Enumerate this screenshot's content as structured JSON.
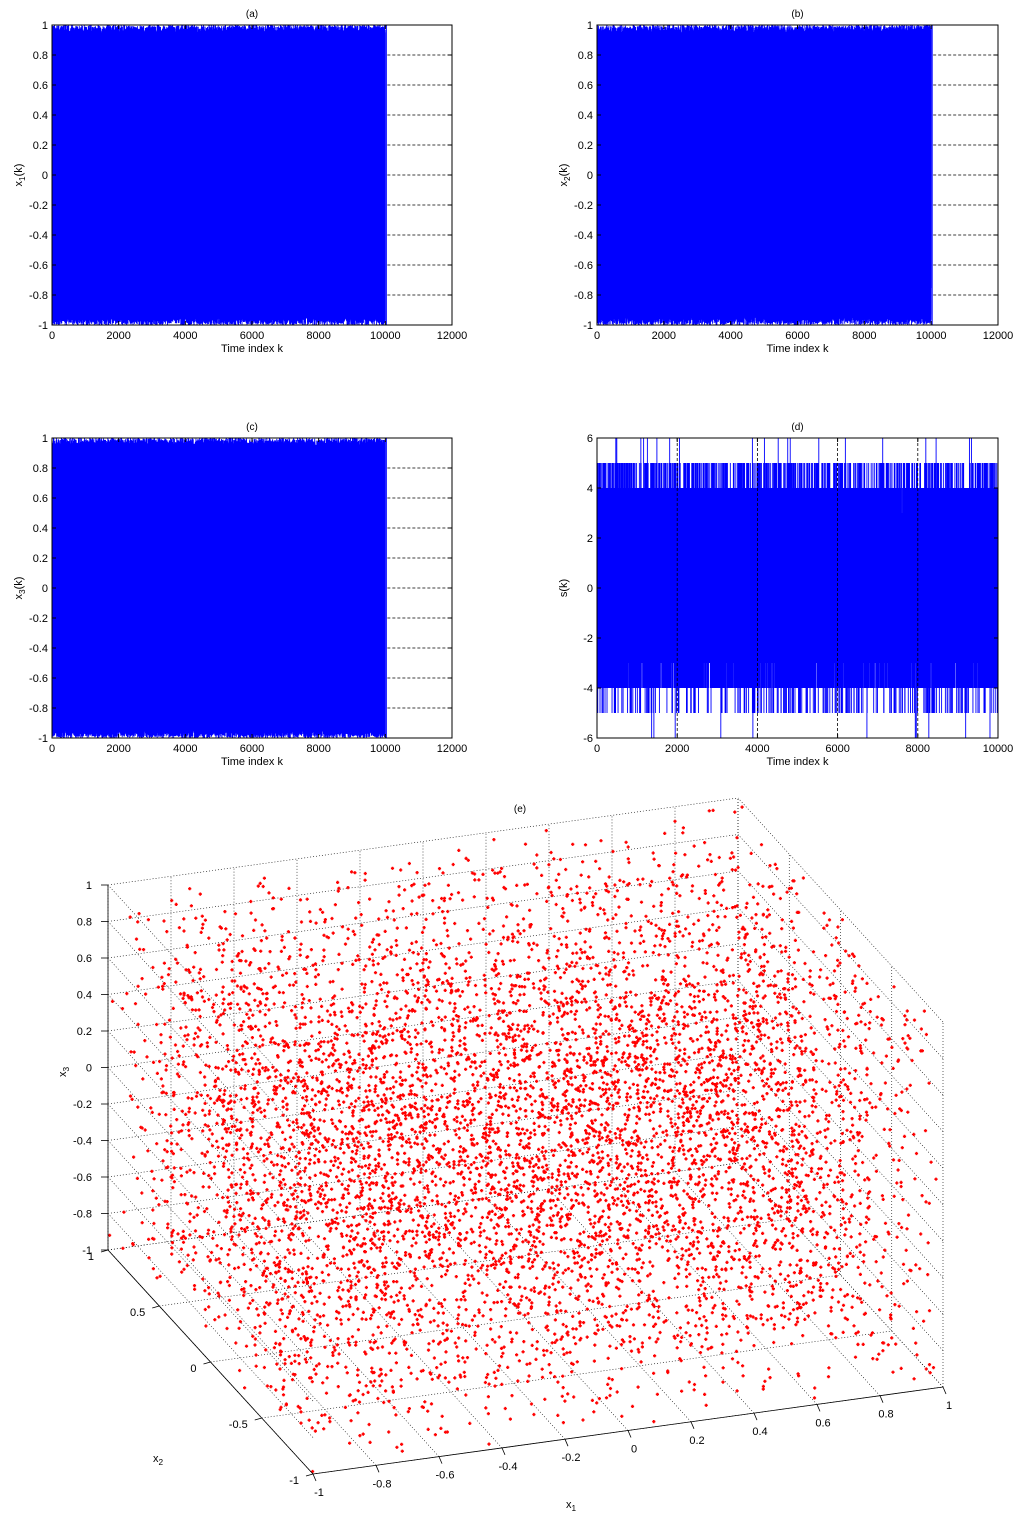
{
  "colors": {
    "signal": "#0000ff",
    "scatter": "#ff0000",
    "axis": "#000000",
    "grid": "#000000"
  },
  "chart_data": [
    {
      "type": "line",
      "title": "(a)",
      "xlabel": "Time index k",
      "ylabel": "x1(k)",
      "ylabel_main": "x",
      "ylabel_sub": "1",
      "ylabel_tail": "(k)",
      "xlim": [
        0,
        12000
      ],
      "ylim": [
        -1,
        1
      ],
      "xticks": [
        0,
        2000,
        4000,
        6000,
        8000,
        10000,
        12000
      ],
      "yticks": [
        -1,
        -0.8,
        -0.6,
        -0.4,
        -0.2,
        0,
        0.2,
        0.4,
        0.6,
        0.8,
        1
      ],
      "xtick_labels": [
        "0",
        "2000",
        "4000",
        "6000",
        "8000",
        "10000",
        "12000"
      ],
      "ytick_labels": [
        "-1",
        "-0.8",
        "-0.6",
        "-0.4",
        "-0.2",
        "0",
        "0.2",
        "0.4",
        "0.6",
        "0.8",
        "1"
      ],
      "grid": "horizontal dashed",
      "series": [
        {
          "n_samples": 10000,
          "x_range": [
            0,
            10000
          ],
          "y_range": [
            -1,
            1
          ],
          "distribution": "chaotic, dense in [-1, 1]"
        }
      ]
    },
    {
      "type": "line",
      "title": "(b)",
      "xlabel": "Time index k",
      "ylabel": "x2(k)",
      "ylabel_main": "x",
      "ylabel_sub": "2",
      "ylabel_tail": "(k)",
      "xlim": [
        0,
        12000
      ],
      "ylim": [
        -1,
        1
      ],
      "xticks": [
        0,
        2000,
        4000,
        6000,
        8000,
        10000,
        12000
      ],
      "yticks": [
        -1,
        -0.8,
        -0.6,
        -0.4,
        -0.2,
        0,
        0.2,
        0.4,
        0.6,
        0.8,
        1
      ],
      "xtick_labels": [
        "0",
        "2000",
        "4000",
        "6000",
        "8000",
        "10000",
        "12000"
      ],
      "ytick_labels": [
        "-1",
        "-0.8",
        "-0.6",
        "-0.4",
        "-0.2",
        "0",
        "0.2",
        "0.4",
        "0.6",
        "0.8",
        "1"
      ],
      "grid": "horizontal dashed",
      "series": [
        {
          "n_samples": 10000,
          "x_range": [
            0,
            10000
          ],
          "y_range": [
            -1,
            1
          ],
          "distribution": "chaotic, dense in [-1, 1]"
        }
      ]
    },
    {
      "type": "line",
      "title": "(c)",
      "xlabel": "Time index k",
      "ylabel": "x3(k)",
      "ylabel_main": "x",
      "ylabel_sub": "3",
      "ylabel_tail": "(k)",
      "xlim": [
        0,
        12000
      ],
      "ylim": [
        -1,
        1
      ],
      "xticks": [
        0,
        2000,
        4000,
        6000,
        8000,
        10000,
        12000
      ],
      "yticks": [
        -1,
        -0.8,
        -0.6,
        -0.4,
        -0.2,
        0,
        0.2,
        0.4,
        0.6,
        0.8,
        1
      ],
      "xtick_labels": [
        "0",
        "2000",
        "4000",
        "6000",
        "8000",
        "10000",
        "12000"
      ],
      "ytick_labels": [
        "-1",
        "-0.8",
        "-0.6",
        "-0.4",
        "-0.2",
        "0",
        "0.2",
        "0.4",
        "0.6",
        "0.8",
        "1"
      ],
      "grid": "horizontal dashed",
      "series": [
        {
          "n_samples": 10000,
          "x_range": [
            0,
            10000
          ],
          "y_range": [
            -1,
            1
          ],
          "distribution": "chaotic, dense in [-1, 1]"
        }
      ]
    },
    {
      "type": "line",
      "title": "(d)",
      "xlabel": "Time index k",
      "ylabel": "s(k)",
      "ylabel_main": "s(k)",
      "ylabel_sub": "",
      "ylabel_tail": "",
      "xlim": [
        0,
        10000
      ],
      "ylim": [
        -6,
        6
      ],
      "xticks": [
        0,
        2000,
        4000,
        6000,
        8000,
        10000
      ],
      "yticks": [
        -6,
        -4,
        -2,
        0,
        2,
        4,
        6
      ],
      "xtick_labels": [
        "0",
        "2000",
        "4000",
        "6000",
        "8000",
        "10000"
      ],
      "ytick_labels": [
        "-6",
        "-4",
        "-2",
        "0",
        "2",
        "4",
        "6"
      ],
      "grid": "vertical dashed",
      "series": [
        {
          "n_samples": 10000,
          "x_range": [
            0,
            10000
          ],
          "y_range": [
            -6,
            6
          ],
          "distribution": "integer valued, mostly -4..4"
        }
      ]
    },
    {
      "type": "scatter3d",
      "title": "(e)",
      "xlabel": "x1",
      "ylabel": "x2",
      "zlabel": "x3",
      "xlabel_main": "x",
      "xlabel_sub": "1",
      "ylabel_main": "x",
      "ylabel_sub": "2",
      "zlabel_main": "x",
      "zlabel_sub": "3",
      "xlim": [
        -1,
        1
      ],
      "ylim": [
        -1,
        1
      ],
      "zlim": [
        -1,
        1
      ],
      "xticks": [
        -1,
        -0.8,
        -0.6,
        -0.4,
        -0.2,
        0,
        0.2,
        0.4,
        0.6,
        0.8,
        1
      ],
      "yticks": [
        -1,
        -0.5,
        0,
        0.5,
        1
      ],
      "zticks": [
        -1,
        -0.8,
        -0.6,
        -0.4,
        -0.2,
        0,
        0.2,
        0.4,
        0.6,
        0.8,
        1
      ],
      "xtick_labels": [
        "-1",
        "-0.8",
        "-0.6",
        "-0.4",
        "-0.2",
        "0",
        "0.2",
        "0.4",
        "0.6",
        "0.8",
        "1"
      ],
      "ytick_labels": [
        "-1",
        "-0.5",
        "0",
        "0.5",
        "1"
      ],
      "ztick_labels": [
        "-1",
        "-0.8",
        "-0.6",
        "-0.4",
        "-0.2",
        "0",
        "0.2",
        "0.4",
        "0.6",
        "0.8",
        "1"
      ],
      "grid": true,
      "series": [
        {
          "marker": "dot",
          "n_points": 10000,
          "distribution": "uniform-like, fills cube [-1,1]^3"
        }
      ]
    }
  ]
}
